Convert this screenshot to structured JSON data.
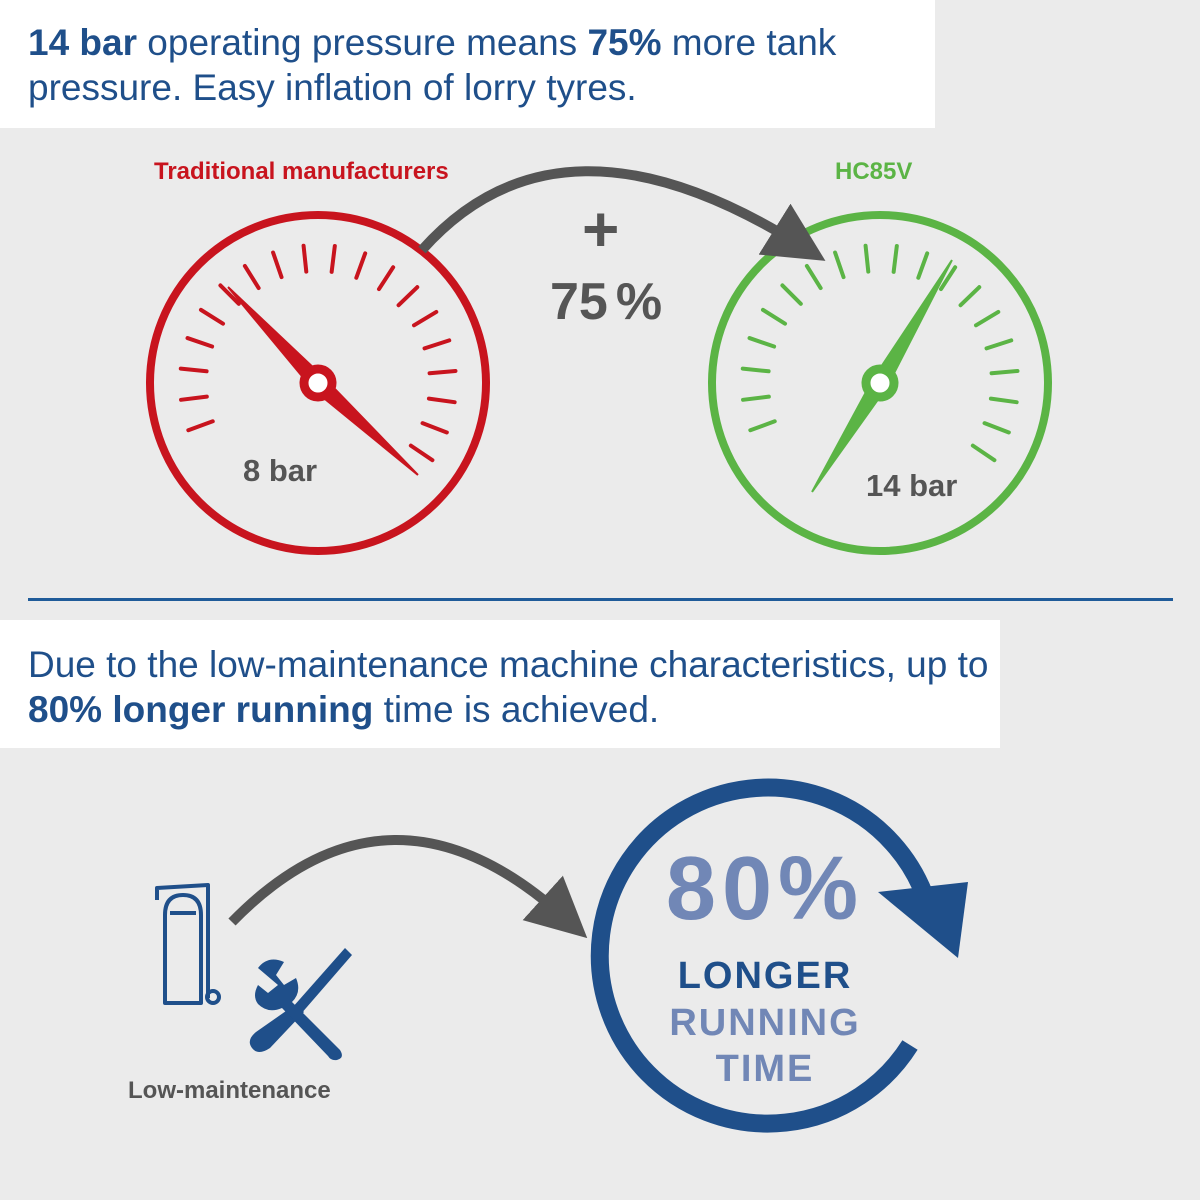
{
  "top_text": {
    "bold1": "14 bar",
    "part1": " operating pressure means ",
    "bold2": "75%",
    "part2": " more tank pressure. Easy inflation of lorry tyres."
  },
  "gauge_left": {
    "title": "Traditional manufacturers",
    "reading": "8 bar",
    "color": "#c8141e"
  },
  "gauge_right": {
    "title": "HC85V",
    "reading": "14 bar",
    "color": "#5bb445"
  },
  "increase": {
    "sign": "+",
    "value": "75",
    "unit": "%"
  },
  "bottom_text": {
    "part1": "Due to the low-maintenance machine characteristics, up to ",
    "bold": "80% longer running",
    "part2": " time is achieved."
  },
  "maintenance_label": "Low-maintenance",
  "running_time": {
    "percent": "80%",
    "line1": "LONGER",
    "line2": "RUNNING",
    "line3": "TIME",
    "color_dark": "#1f4f8a",
    "color_light": "#7187b6"
  },
  "icons": {
    "compressor": "compressor-icon",
    "tools": "wrench-screwdriver-icon",
    "arrows": "curved-arrow-icon",
    "cycle": "circular-arrow-icon"
  }
}
